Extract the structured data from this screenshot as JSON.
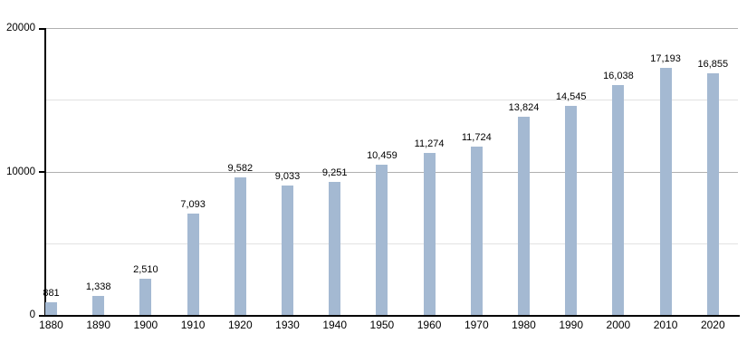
{
  "chart_data": {
    "type": "bar",
    "title": "",
    "xlabel": "",
    "ylabel": "",
    "categories": [
      "1880",
      "1890",
      "1900",
      "1910",
      "1920",
      "1930",
      "1940",
      "1950",
      "1960",
      "1970",
      "1980",
      "1990",
      "2000",
      "2010",
      "2020"
    ],
    "values": [
      881,
      1338,
      2510,
      7093,
      9582,
      9033,
      9251,
      10459,
      11274,
      11724,
      13824,
      14545,
      16038,
      17193,
      16855
    ],
    "value_labels": [
      "881",
      "1,338",
      "2,510",
      "7,093",
      "9,582",
      "9,033",
      "9,251",
      "10,459",
      "11,274",
      "11,724",
      "13,824",
      "14,545",
      "16,038",
      "17,193",
      "16,855"
    ],
    "ylim": [
      0,
      20000
    ],
    "yticks": [
      {
        "value": 0,
        "label": "0"
      },
      {
        "value": 10000,
        "label": "10000"
      },
      {
        "value": 20000,
        "label": "20000"
      }
    ],
    "minor_gridlines": [
      5000,
      15000
    ],
    "grid": "on",
    "legend": "none",
    "colors": {
      "bar": "#a4b9d2",
      "grid_major": "#b0b0b0",
      "grid_minor": "#e2e2e2",
      "axis": "#000000",
      "text": "#000000",
      "background": "#ffffff"
    }
  }
}
